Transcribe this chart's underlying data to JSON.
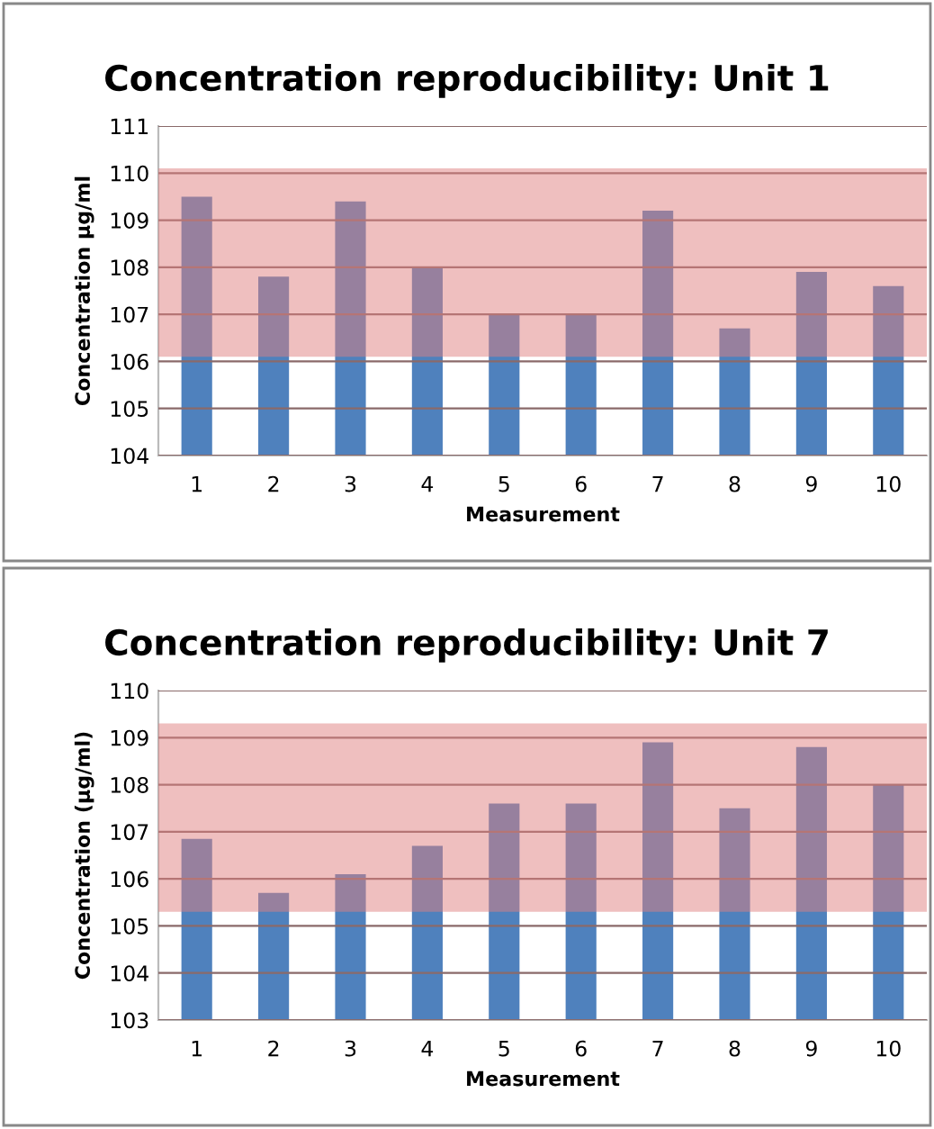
{
  "chart_data": [
    {
      "type": "bar",
      "title": "Concentration reproducibility: Unit 1",
      "xlabel": "Measurement",
      "ylabel": "Concentration µg/ml",
      "categories": [
        "1",
        "2",
        "3",
        "4",
        "5",
        "6",
        "7",
        "8",
        "9",
        "10"
      ],
      "values": [
        109.5,
        107.8,
        109.4,
        108.0,
        107.0,
        107.0,
        109.2,
        106.7,
        107.9,
        107.6
      ],
      "color": "#4f81bd",
      "ylim": [
        104,
        111
      ],
      "yticks": [
        104,
        105,
        106,
        107,
        108,
        109,
        110,
        111
      ],
      "grid": "y",
      "bands": [
        {
          "axis": "y",
          "from": 106.1,
          "to": 110.1,
          "color": "#e08080"
        }
      ]
    },
    {
      "type": "bar",
      "title": "Concentration reproducibility: Unit 7",
      "xlabel": "Measurement",
      "ylabel": "Concentration (µg/ml)",
      "categories": [
        "1",
        "2",
        "3",
        "4",
        "5",
        "6",
        "7",
        "8",
        "9",
        "10"
      ],
      "values": [
        106.85,
        105.7,
        106.1,
        106.7,
        107.6,
        107.6,
        108.9,
        107.5,
        108.8,
        108.0
      ],
      "color": "#4f81bd",
      "ylim": [
        103,
        110
      ],
      "yticks": [
        103,
        104,
        105,
        106,
        107,
        108,
        109,
        110
      ],
      "grid": "y",
      "bands": [
        {
          "axis": "y",
          "from": 105.3,
          "to": 109.3,
          "color": "#e08080"
        }
      ]
    }
  ]
}
